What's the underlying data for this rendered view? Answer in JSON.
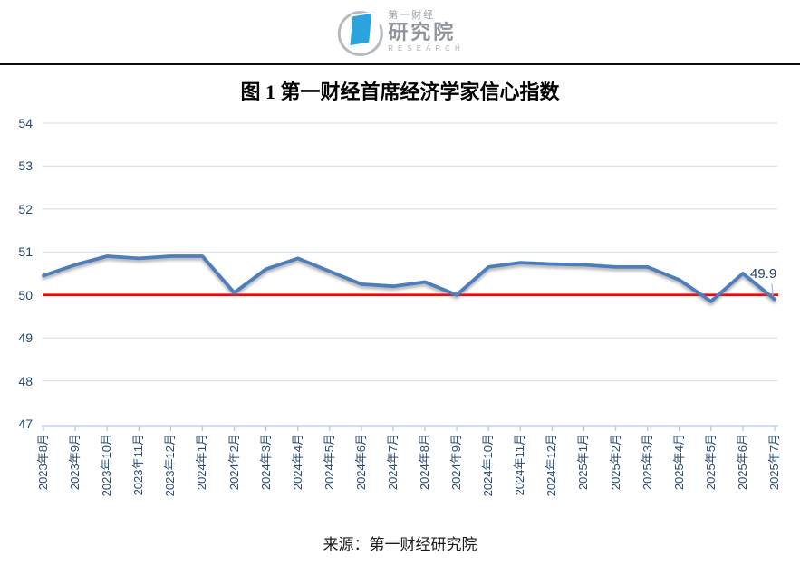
{
  "header": {
    "logo": {
      "line1": "第一财经",
      "line2": "研究院",
      "line3": "RESEARCH"
    }
  },
  "chart_data": {
    "type": "line",
    "title": "图 1 第一财经首席经济学家信心指数",
    "categories": [
      "2023年8月",
      "2023年9月",
      "2023年10月",
      "2023年11月",
      "2023年12月",
      "2024年1月",
      "2024年2月",
      "2024年3月",
      "2024年4月",
      "2024年5月",
      "2024年6月",
      "2024年7月",
      "2024年8月",
      "2024年9月",
      "2024年10月",
      "2024年11月",
      "2024年12月",
      "2025年1月",
      "2025年2月",
      "2025年3月",
      "2025年4月",
      "2025年5月",
      "2025年6月",
      "2025年7月"
    ],
    "values": [
      50.45,
      50.7,
      50.9,
      50.85,
      50.9,
      50.9,
      50.05,
      50.6,
      50.85,
      50.55,
      50.25,
      50.2,
      50.3,
      50.0,
      50.65,
      50.75,
      50.72,
      50.7,
      50.65,
      50.65,
      50.35,
      49.85,
      50.5,
      49.9
    ],
    "ylim": [
      47,
      54
    ],
    "yticks": [
      54,
      53,
      52,
      51,
      50,
      49,
      48,
      47
    ],
    "reference_line_value": 50,
    "last_point_label": "49.9",
    "grid": true,
    "legend": false,
    "colors": {
      "series_line": "#4d7dbb",
      "reference_line": "#ff0000",
      "gridline": "#dae3f1",
      "axis_line": "#b9cce6",
      "tick_text": "#2a4b74",
      "leader_line": "#9dc3e6"
    }
  },
  "footer": {
    "source": "来源：第一财经研究院"
  }
}
